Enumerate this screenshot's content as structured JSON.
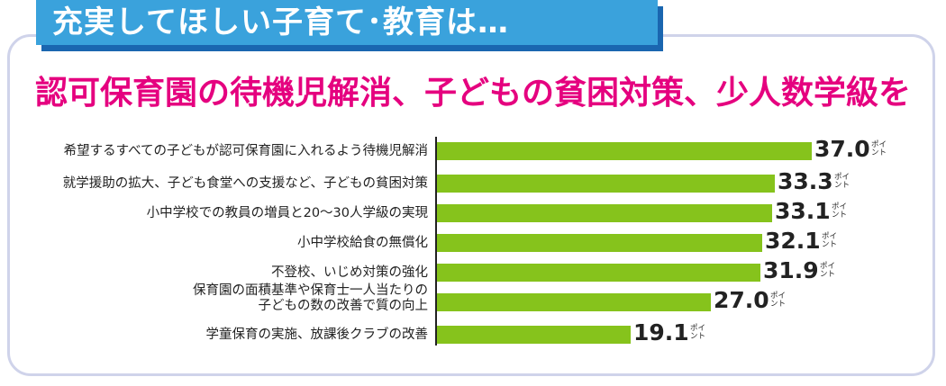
{
  "header": {
    "tab_title": "充実してほしい子育て･教育は…",
    "headline": "認可保育園の待機児解消、子どもの貧困対策、少人数学級を"
  },
  "colors": {
    "tab": "#3aa2dc",
    "tab_shadow": "#1a66b0",
    "headline": "#e5007f",
    "bar": "#86c31c",
    "frame": "#cfd3ea"
  },
  "chart_data": {
    "type": "bar",
    "orientation": "horizontal",
    "unit_label": "ポイント",
    "categories": [
      "希望するすべての子どもが認可保育園に入れるよう待機児解消",
      "就学援助の拡大、子ども食堂への支援など、子どもの貧困対策",
      "小中学校での教員の増員と20～30人学級の実現",
      "小中学校給食の無償化",
      "不登校、いじめ対策の強化",
      "保育園の面積基準や保育士一人当たりの\n子どもの数の改善で質の向上",
      "学童保育の実施、放課後クラブの改善"
    ],
    "values": [
      37.0,
      33.3,
      33.1,
      32.1,
      31.9,
      27.0,
      19.1
    ],
    "value_labels": [
      "37.0",
      "33.3",
      "33.1",
      "32.1",
      "31.9",
      "27.0",
      "19.1"
    ],
    "xlim": [
      0,
      40
    ]
  }
}
